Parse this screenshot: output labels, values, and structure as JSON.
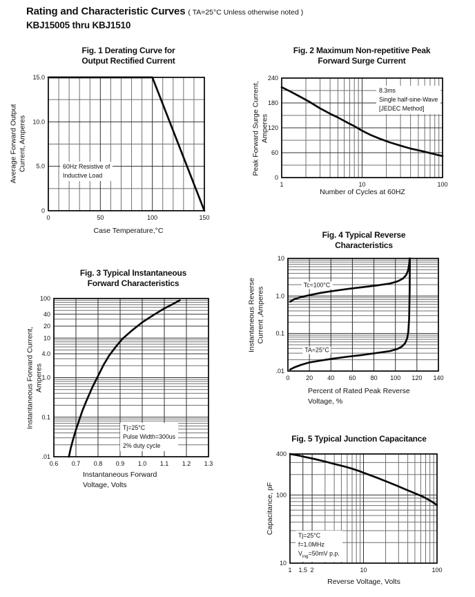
{
  "header": {
    "title": "Rating and Characteristic Curves",
    "subtitle": "( TA=25°C Unless otherwise noted )",
    "part_range": "KBJ15005  thru  KBJ1510"
  },
  "chart_data": [
    {
      "id": "fig1",
      "type": "line",
      "title_lines": [
        "Fig. 1 Derating Curve for",
        "Output Rectified Current"
      ],
      "x_axis": {
        "scale": "linear",
        "min": 0,
        "max": 150,
        "minor_step": 10,
        "ticks": [
          {
            "v": 0,
            "label": "0"
          },
          {
            "v": 50,
            "label": "50"
          },
          {
            "v": 100,
            "label": "100"
          },
          {
            "v": 150,
            "label": "150"
          }
        ],
        "label_lines": [
          "Case Temperature,°C"
        ]
      },
      "y_axis": {
        "scale": "linear",
        "min": 0,
        "max": 15,
        "minor_step": 2.5,
        "ticks": [
          {
            "v": 0,
            "label": "0"
          },
          {
            "v": 5,
            "label": "5.0"
          },
          {
            "v": 10,
            "label": "10.0"
          },
          {
            "v": 15,
            "label": "15.0"
          }
        ],
        "label_lines": [
          "Average Forward Output",
          "Current, Amperes"
        ]
      },
      "series": [
        {
          "name": "derating-curve",
          "points": [
            [
              0,
              15
            ],
            [
              100,
              15
            ],
            [
              150,
              0
            ]
          ]
        }
      ],
      "annotations": [
        {
          "lines": [
            "60Hz Resistive of",
            "Inductive Load"
          ]
        }
      ]
    },
    {
      "id": "fig2",
      "type": "line",
      "title_lines": [
        "Fig. 2 Maximum Non-repetitive Peak",
        "Forward Surge Current"
      ],
      "x_axis": {
        "scale": "log",
        "min": 1,
        "max": 100,
        "ticks": [
          {
            "v": 1,
            "label": "1"
          },
          {
            "v": 10,
            "label": "10"
          },
          {
            "v": 100,
            "label": "100"
          }
        ],
        "label_lines": [
          "Number of Cycles at 60HZ"
        ]
      },
      "y_axis": {
        "scale": "linear",
        "min": 0,
        "max": 240,
        "minor_step": 30,
        "ticks": [
          {
            "v": 0,
            "label": "0"
          },
          {
            "v": 60,
            "label": "60"
          },
          {
            "v": 120,
            "label": "120"
          },
          {
            "v": 180,
            "label": "180"
          },
          {
            "v": 240,
            "label": "240"
          }
        ],
        "label_lines": [
          "Peak Forward Surge Current,",
          "Amperes"
        ]
      },
      "series": [
        {
          "name": "surge-current-curve",
          "points": [
            [
              1,
              218
            ],
            [
              1.3,
              207
            ],
            [
              1.7,
              195
            ],
            [
              2.2,
              183
            ],
            [
              3,
              167
            ],
            [
              4,
              154
            ],
            [
              5,
              145
            ],
            [
              6.5,
              133
            ],
            [
              8,
              124
            ],
            [
              10,
              113
            ],
            [
              13,
              102
            ],
            [
              17,
              93
            ],
            [
              22,
              85
            ],
            [
              30,
              77
            ],
            [
              40,
              70
            ],
            [
              55,
              64
            ],
            [
              70,
              59
            ],
            [
              85,
              55
            ],
            [
              100,
              52
            ]
          ]
        }
      ],
      "annotations": [
        {
          "lines": [
            "8.3ms",
            "Single half-sine-Wave",
            "[JEDEC Method]"
          ]
        }
      ]
    },
    {
      "id": "fig3",
      "type": "line",
      "title_lines": [
        "Fig. 3 Typical Instantaneous",
        "Forward Characteristics"
      ],
      "x_axis": {
        "scale": "linear",
        "min": 0.6,
        "max": 1.3,
        "minor_step": 0.1,
        "ticks": [
          {
            "v": 0.6,
            "label": "0.6"
          },
          {
            "v": 0.7,
            "label": "0.7"
          },
          {
            "v": 0.8,
            "label": "0.8"
          },
          {
            "v": 0.9,
            "label": "0.9"
          },
          {
            "v": 1.0,
            "label": "1.0"
          },
          {
            "v": 1.1,
            "label": "1.1"
          },
          {
            "v": 1.2,
            "label": "1.2"
          },
          {
            "v": 1.3,
            "label": "1.3"
          }
        ],
        "label_lines": [
          "Instantaneous Forward",
          "Voltage, Volts"
        ]
      },
      "y_axis": {
        "scale": "log",
        "min": 0.01,
        "max": 100,
        "ticks": [
          {
            "v": 100,
            "label": "100"
          },
          {
            "v": 40,
            "label": "40"
          },
          {
            "v": 20,
            "label": "20"
          },
          {
            "v": 10,
            "label": "10"
          },
          {
            "v": 4,
            "label": "4.0"
          },
          {
            "v": 1,
            "label": "1.0"
          },
          {
            "v": 0.1,
            "label": "0.1"
          },
          {
            "v": 0.01,
            "label": ".01"
          }
        ],
        "label_lines": [
          "Instantaneous Forward Current,",
          "Amperes"
        ]
      },
      "series": [
        {
          "name": "forward-characteristic-curve",
          "points": [
            [
              0.668,
              0.01
            ],
            [
              0.676,
              0.016
            ],
            [
              0.686,
              0.026
            ],
            [
              0.7,
              0.048
            ],
            [
              0.715,
              0.085
            ],
            [
              0.73,
              0.15
            ],
            [
              0.75,
              0.28
            ],
            [
              0.775,
              0.58
            ],
            [
              0.8,
              1.1
            ],
            [
              0.825,
              2.1
            ],
            [
              0.85,
              3.6
            ],
            [
              0.88,
              6.0
            ],
            [
              0.91,
              9.5
            ],
            [
              0.95,
              15
            ],
            [
              1.0,
              25
            ],
            [
              1.05,
              38
            ],
            [
              1.1,
              56
            ],
            [
              1.14,
              73
            ],
            [
              1.17,
              90
            ]
          ]
        }
      ],
      "annotations": [
        {
          "lines": [
            "Tj=25°C",
            "Pulse Width=300us",
            "2% duty cycle"
          ]
        }
      ]
    },
    {
      "id": "fig4",
      "type": "line",
      "title_lines": [
        "Fig. 4 Typical Reverse",
        "Characteristics"
      ],
      "x_axis": {
        "scale": "linear",
        "min": 0,
        "max": 140,
        "minor_step": 20,
        "ticks": [
          {
            "v": 0,
            "label": "0"
          },
          {
            "v": 20,
            "label": "20"
          },
          {
            "v": 40,
            "label": "40"
          },
          {
            "v": 60,
            "label": "60"
          },
          {
            "v": 80,
            "label": "80"
          },
          {
            "v": 100,
            "label": "100"
          },
          {
            "v": 120,
            "label": "120"
          },
          {
            "v": 140,
            "label": "140"
          }
        ],
        "label_lines": [
          "Percent of Rated Peak Reverse",
          "Voltage, %"
        ]
      },
      "y_axis": {
        "scale": "log",
        "min": 0.01,
        "max": 10,
        "ticks": [
          {
            "v": 10,
            "label": "10"
          },
          {
            "v": 1,
            "label": "1.0"
          },
          {
            "v": 0.1,
            "label": "0.1"
          },
          {
            "v": 0.01,
            "label": ".01"
          }
        ],
        "label_lines": [
          "Instantaneous Reverse",
          "Current ,Amperes"
        ]
      },
      "series": [
        {
          "name": "reverse-current-tc100",
          "label": {
            "text": "Tc=100°C",
            "x": 27,
            "y": 1.95
          },
          "points": [
            [
              2,
              0.7
            ],
            [
              6,
              0.82
            ],
            [
              12,
              0.93
            ],
            [
              20,
              1.05
            ],
            [
              30,
              1.2
            ],
            [
              40,
              1.33
            ],
            [
              55,
              1.53
            ],
            [
              70,
              1.72
            ],
            [
              85,
              1.95
            ],
            [
              95,
              2.15
            ],
            [
              102,
              2.45
            ],
            [
              107,
              2.9
            ],
            [
              110,
              3.6
            ],
            [
              111.8,
              4.8
            ],
            [
              112.8,
              7
            ],
            [
              113.3,
              10
            ]
          ]
        },
        {
          "name": "reverse-current-ta25",
          "label": {
            "text": "TA=25°C",
            "x": 27,
            "y": 0.036
          },
          "points": [
            [
              2,
              0.011
            ],
            [
              6,
              0.0125
            ],
            [
              12,
              0.0145
            ],
            [
              20,
              0.017
            ],
            [
              30,
              0.019
            ],
            [
              40,
              0.021
            ],
            [
              55,
              0.024
            ],
            [
              70,
              0.027
            ],
            [
              85,
              0.031
            ],
            [
              95,
              0.034
            ],
            [
              102,
              0.039
            ],
            [
              106,
              0.045
            ],
            [
              109,
              0.055
            ],
            [
              111,
              0.075
            ],
            [
              112,
              0.11
            ],
            [
              112.8,
              0.25
            ],
            [
              113.3,
              1.5
            ],
            [
              113.5,
              10
            ]
          ]
        }
      ],
      "annotations": []
    },
    {
      "id": "fig5",
      "type": "line",
      "title_lines": [
        "Fig. 5 Typical Junction Capacitance"
      ],
      "x_axis": {
        "scale": "log",
        "min": 1,
        "max": 100,
        "ticks": [
          {
            "v": 1,
            "label": "1"
          },
          {
            "v": 1.5,
            "label": "1.5"
          },
          {
            "v": 2,
            "label": "2"
          },
          {
            "v": 10,
            "label": "10"
          },
          {
            "v": 100,
            "label": "100"
          }
        ],
        "label_lines": [
          "Reverse Voltage, Volts"
        ]
      },
      "y_axis": {
        "scale": "log",
        "min": 10,
        "max": 400,
        "ticks": [
          {
            "v": 400,
            "label": "400"
          },
          {
            "v": 100,
            "label": "100"
          },
          {
            "v": 10,
            "label": "10"
          }
        ],
        "label_lines": [
          "Capacitance, pF"
        ]
      },
      "series": [
        {
          "name": "junction-capacitance-curve",
          "points": [
            [
              1,
              400
            ],
            [
              1.3,
              380
            ],
            [
              1.7,
              357
            ],
            [
              2.2,
              336
            ],
            [
              3,
              310
            ],
            [
              4,
              286
            ],
            [
              5.5,
              262
            ],
            [
              7,
              243
            ],
            [
              9,
              222
            ],
            [
              12,
              197
            ],
            [
              16,
              176
            ],
            [
              21,
              156
            ],
            [
              28,
              138
            ],
            [
              38,
              120
            ],
            [
              50,
              106
            ],
            [
              65,
              94
            ],
            [
              82,
              82
            ],
            [
              100,
              71
            ]
          ]
        }
      ],
      "annotations": [
        {
          "lines": [
            "Tj=25°C",
            "f=1.0MHz",
            "V~ing~=50mV p.p."
          ]
        }
      ]
    }
  ]
}
